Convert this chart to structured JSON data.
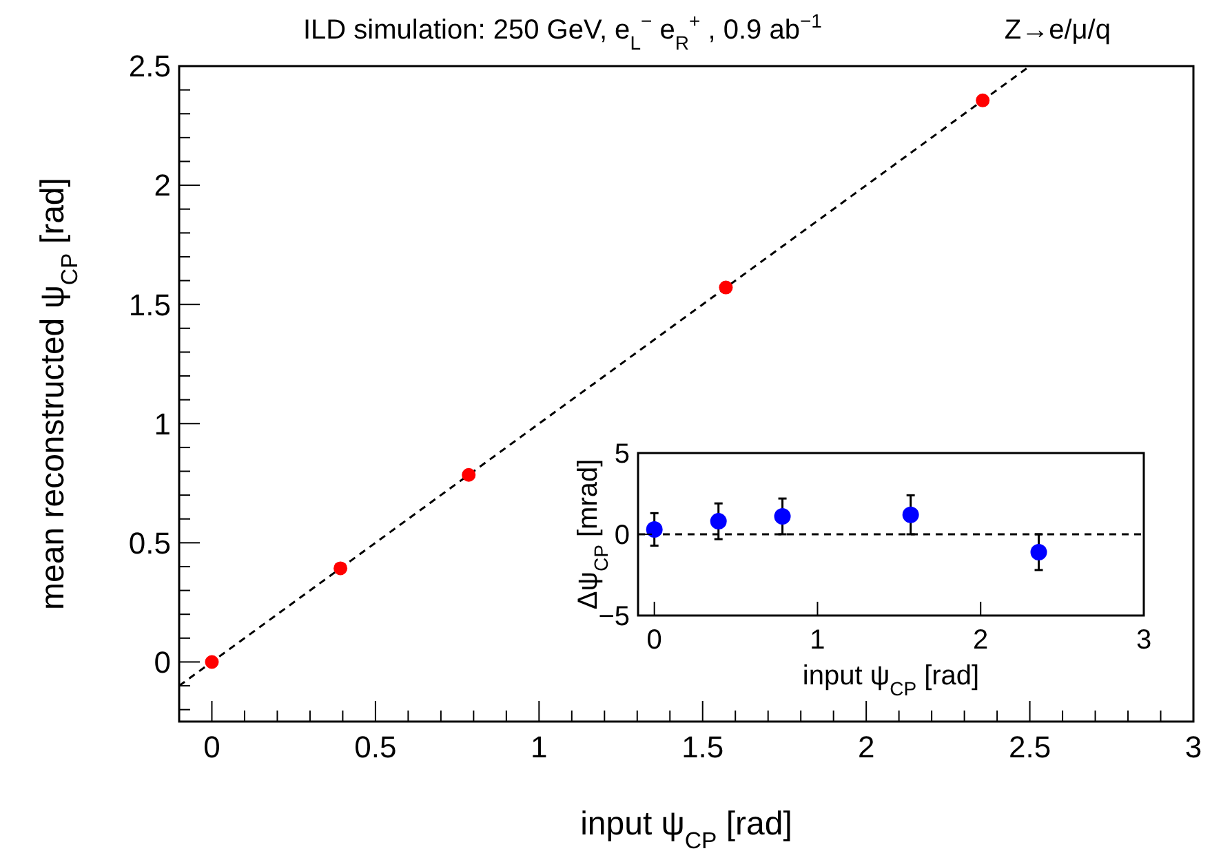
{
  "chart_data": [
    {
      "type": "scatter",
      "title": "ILD simulation: 250 GeV, e$_{L}$$^{−}$ e$_{R}$$^{+}$ , 0.9 ab$^{−1}$",
      "annotations": [
        "Z→e/μ/q"
      ],
      "xlabel": "input ψ$_{CP}$ [rad]",
      "ylabel": "mean reconstructed ψ$_{CP}$ [rad]",
      "xlim": [
        -0.1,
        3
      ],
      "ylim": [
        -0.25,
        2.5
      ],
      "xticks": [
        0,
        0.5,
        1,
        1.5,
        2,
        2.5,
        3,
        {
          "value": -0.1,
          "label": null
        },
        {
          "value": 0.1,
          "label": null
        },
        {
          "value": 0.2,
          "label": null
        },
        {
          "value": 0.3,
          "label": null
        },
        {
          "value": 0.4,
          "label": null
        },
        {
          "value": 0.6,
          "label": null
        },
        {
          "value": 0.7,
          "label": null
        },
        {
          "value": 0.8,
          "label": null
        },
        {
          "value": 0.9,
          "label": null
        },
        {
          "value": 1.1,
          "label": null
        },
        {
          "value": 1.2,
          "label": null
        },
        {
          "value": 1.3,
          "label": null
        },
        {
          "value": 1.4,
          "label": null
        },
        {
          "value": 1.6,
          "label": null
        },
        {
          "value": 1.7,
          "label": null
        },
        {
          "value": 1.8,
          "label": null
        },
        {
          "value": 1.9,
          "label": null
        },
        {
          "value": 2.1,
          "label": null
        },
        {
          "value": 2.2,
          "label": null
        },
        {
          "value": 2.3,
          "label": null
        },
        {
          "value": 2.4,
          "label": null
        },
        {
          "value": 2.6,
          "label": null
        },
        {
          "value": 2.7,
          "label": null
        },
        {
          "value": 2.8,
          "label": null
        },
        {
          "value": 2.9,
          "label": null
        }
      ],
      "yticks": [
        0,
        0.5,
        1,
        1.5,
        2,
        2.5,
        {
          "value": -0.2,
          "label": null
        },
        {
          "value": -0.1,
          "label": null
        },
        {
          "value": 0.1,
          "label": null
        },
        {
          "value": 0.2,
          "label": null
        },
        {
          "value": 0.3,
          "label": null
        },
        {
          "value": 0.4,
          "label": null
        },
        {
          "value": 0.6,
          "label": null
        },
        {
          "value": 0.7,
          "label": null
        },
        {
          "value": 0.8,
          "label": null
        },
        {
          "value": 0.9,
          "label": null
        },
        {
          "value": 1.1,
          "label": null
        },
        {
          "value": 1.2,
          "label": null
        },
        {
          "value": 1.3,
          "label": null
        },
        {
          "value": 1.4,
          "label": null
        },
        {
          "value": 1.6,
          "label": null
        },
        {
          "value": 1.7,
          "label": null
        },
        {
          "value": 1.8,
          "label": null
        },
        {
          "value": 1.9,
          "label": null
        },
        {
          "value": 2.1,
          "label": null
        },
        {
          "value": 2.2,
          "label": null
        },
        {
          "value": 2.3,
          "label": null
        },
        {
          "value": 2.4,
          "label": null
        }
      ],
      "grid": false,
      "series": [
        {
          "type": "line",
          "color": "#000000",
          "line_style": "dashed",
          "x": [
            -0.1,
            2.5
          ],
          "values": [
            -0.1,
            2.5
          ]
        },
        {
          "color": "#ff0000",
          "marker": "circle",
          "x": [
            0,
            0.393,
            0.785,
            1.571,
            2.356
          ],
          "values": [
            0,
            0.393,
            0.785,
            1.571,
            2.356
          ]
        }
      ]
    },
    {
      "type": "scatter",
      "xlabel": "input ψ$_{CP}$ [rad]",
      "ylabel": "Δψ$_{CP}$ [mrad]",
      "xlim": [
        -0.1,
        3
      ],
      "ylim": [
        -5,
        5
      ],
      "xticks": [
        0,
        1,
        2,
        3
      ],
      "yticks": [
        -5,
        0,
        5
      ],
      "grid": false,
      "ref_lines": [
        {
          "axis": "y",
          "value": 0,
          "color": "#000000",
          "line_style": "dashed"
        }
      ],
      "series": [
        {
          "color": "#0000ff",
          "marker": "circle",
          "x": [
            0,
            0.393,
            0.785,
            1.571,
            2.356
          ],
          "values": [
            0.3,
            0.8,
            1.1,
            1.2,
            -1.1
          ],
          "errors": [
            1.0,
            1.1,
            1.1,
            1.2,
            1.1
          ]
        }
      ]
    }
  ]
}
